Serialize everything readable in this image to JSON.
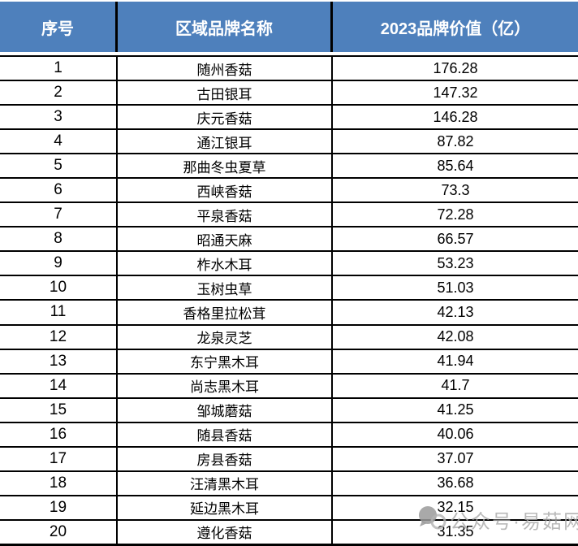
{
  "chart_data": {
    "type": "table",
    "columns": [
      "序号",
      "区域品牌名称",
      "2023品牌价值（亿）"
    ],
    "rows": [
      [
        1,
        "随州香菇",
        "176.28"
      ],
      [
        2,
        "古田银耳",
        "147.32"
      ],
      [
        3,
        "庆元香菇",
        "146.28"
      ],
      [
        4,
        "通江银耳",
        "87.82"
      ],
      [
        5,
        "那曲冬虫夏草",
        "85.64"
      ],
      [
        6,
        "西峡香菇",
        "73.3"
      ],
      [
        7,
        "平泉香菇",
        "72.28"
      ],
      [
        8,
        "昭通天麻",
        "66.57"
      ],
      [
        9,
        "柞水木耳",
        "53.23"
      ],
      [
        10,
        "玉树虫草",
        "51.03"
      ],
      [
        11,
        "香格里拉松茸",
        "42.13"
      ],
      [
        12,
        "龙泉灵芝",
        "42.08"
      ],
      [
        13,
        "东宁黑木耳",
        "41.94"
      ],
      [
        14,
        "尚志黑木耳",
        "41.7"
      ],
      [
        15,
        "邹城蘑菇",
        "41.25"
      ],
      [
        16,
        "随县香菇",
        "40.06"
      ],
      [
        17,
        "房县香菇",
        "37.07"
      ],
      [
        18,
        "汪清黑木耳",
        "36.68"
      ],
      [
        19,
        "延边黑木耳",
        "32.15"
      ],
      [
        20,
        "遵化香菇",
        "31.35"
      ]
    ]
  },
  "watermark": {
    "text": "公众号·易菇网",
    "icon": "chat-bubbles-icon"
  },
  "colors": {
    "header_bg": "#4E80BC",
    "header_text": "#FFFFFF",
    "border": "#000000",
    "watermark_text": "#A8A8A8"
  }
}
